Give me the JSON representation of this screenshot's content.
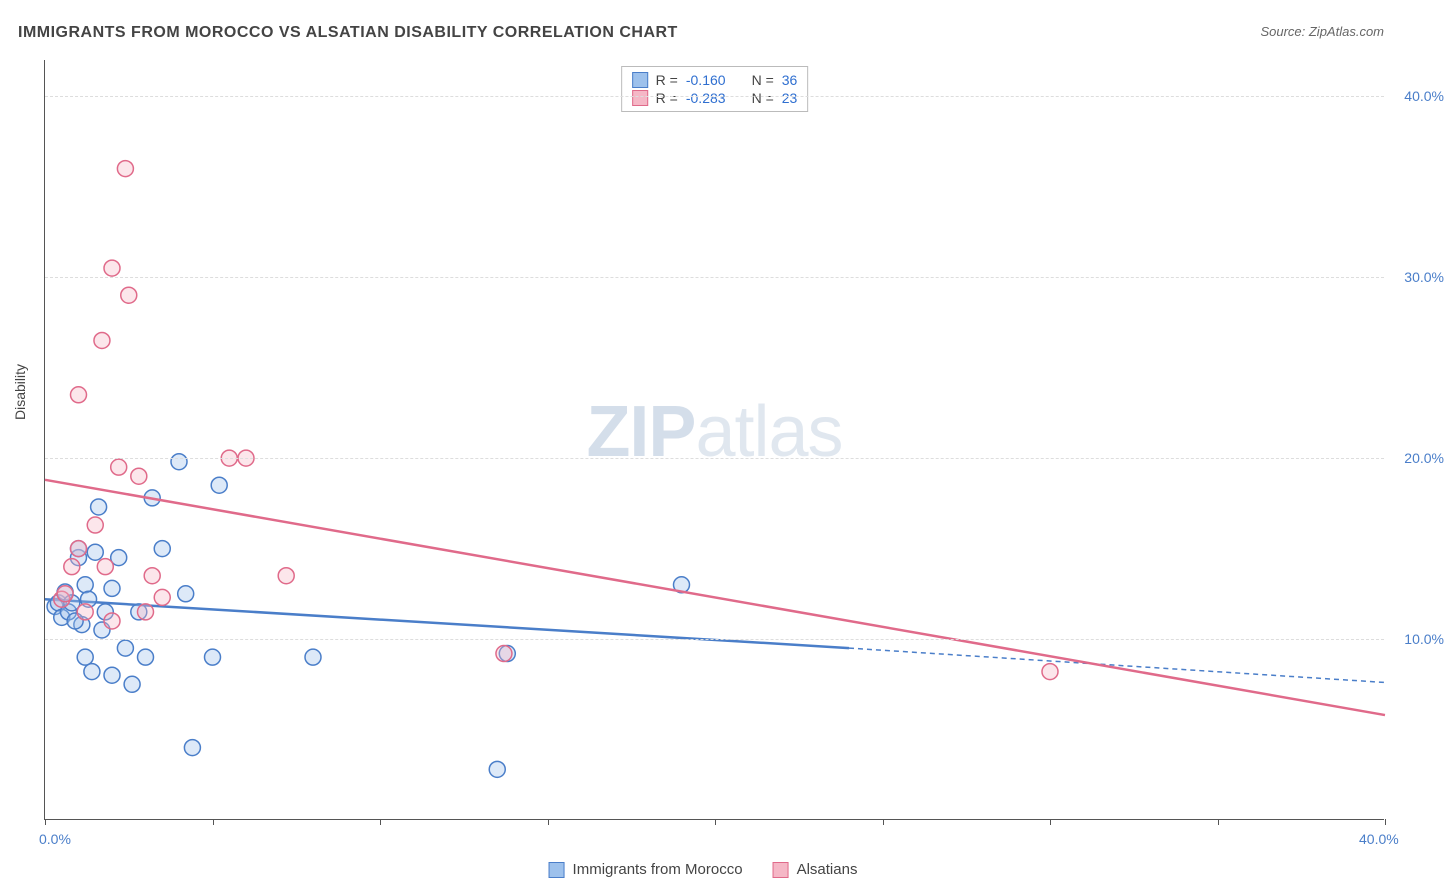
{
  "title": "IMMIGRANTS FROM MOROCCO VS ALSATIAN DISABILITY CORRELATION CHART",
  "source": "Source: ZipAtlas.com",
  "watermark_zip": "ZIP",
  "watermark_atlas": "atlas",
  "y_axis_label": "Disability",
  "chart": {
    "type": "scatter",
    "xlim": [
      0,
      40
    ],
    "ylim": [
      0,
      42
    ],
    "x_ticks": [
      0,
      5,
      10,
      15,
      20,
      25,
      30,
      35,
      40
    ],
    "x_tick_labels": {
      "0": "0.0%",
      "40": "40.0%"
    },
    "y_gridlines": [
      10,
      20,
      30,
      40
    ],
    "y_tick_labels": {
      "10": "10.0%",
      "20": "20.0%",
      "30": "30.0%",
      "40": "40.0%"
    },
    "background_color": "#ffffff",
    "grid_color": "#dddddd",
    "axis_color": "#555555",
    "label_color_axis": "#4a7ec9",
    "marker_radius": 8,
    "marker_stroke_width": 1.5,
    "marker_fill_opacity": 0.35,
    "series": [
      {
        "name": "Immigrants from Morocco",
        "color_fill": "#9dc1ec",
        "color_stroke": "#4a7ec9",
        "R": "-0.160",
        "N": "36",
        "trend": {
          "solid": {
            "x1": 0,
            "y1": 12.2,
            "x2": 24,
            "y2": 9.5
          },
          "dash": {
            "x1": 24,
            "y1": 9.5,
            "x2": 40,
            "y2": 7.6
          }
        },
        "points": [
          [
            0.3,
            11.8
          ],
          [
            0.4,
            12.0
          ],
          [
            0.5,
            11.2
          ],
          [
            0.6,
            12.6
          ],
          [
            0.7,
            11.5
          ],
          [
            0.8,
            12.0
          ],
          [
            1.0,
            14.5
          ],
          [
            1.0,
            15.0
          ],
          [
            1.2,
            13.0
          ],
          [
            1.2,
            9.0
          ],
          [
            1.4,
            8.2
          ],
          [
            1.5,
            14.8
          ],
          [
            1.6,
            17.3
          ],
          [
            1.8,
            11.5
          ],
          [
            2.0,
            12.8
          ],
          [
            2.0,
            8.0
          ],
          [
            2.2,
            14.5
          ],
          [
            2.4,
            9.5
          ],
          [
            2.6,
            7.5
          ],
          [
            2.8,
            11.5
          ],
          [
            3.0,
            9.0
          ],
          [
            3.2,
            17.8
          ],
          [
            3.5,
            15.0
          ],
          [
            4.0,
            19.8
          ],
          [
            4.2,
            12.5
          ],
          [
            4.4,
            4.0
          ],
          [
            5.0,
            9.0
          ],
          [
            5.2,
            18.5
          ],
          [
            8.0,
            9.0
          ],
          [
            13.5,
            2.8
          ],
          [
            13.8,
            9.2
          ],
          [
            19.0,
            13.0
          ],
          [
            1.1,
            10.8
          ],
          [
            0.9,
            11.0
          ],
          [
            1.3,
            12.2
          ],
          [
            1.7,
            10.5
          ]
        ]
      },
      {
        "name": "Alsatians",
        "color_fill": "#f5b7c6",
        "color_stroke": "#e06a8a",
        "R": "-0.283",
        "N": "23",
        "trend": {
          "solid": {
            "x1": 0,
            "y1": 18.8,
            "x2": 40,
            "y2": 5.8
          }
        },
        "points": [
          [
            0.5,
            12.2
          ],
          [
            0.6,
            12.5
          ],
          [
            0.8,
            14.0
          ],
          [
            1.0,
            15.0
          ],
          [
            1.0,
            23.5
          ],
          [
            1.2,
            11.5
          ],
          [
            1.5,
            16.3
          ],
          [
            1.7,
            26.5
          ],
          [
            1.8,
            14.0
          ],
          [
            2.0,
            30.5
          ],
          [
            2.0,
            11.0
          ],
          [
            2.2,
            19.5
          ],
          [
            2.4,
            36.0
          ],
          [
            2.5,
            29.0
          ],
          [
            2.8,
            19.0
          ],
          [
            3.0,
            11.5
          ],
          [
            3.2,
            13.5
          ],
          [
            3.5,
            12.3
          ],
          [
            5.5,
            20.0
          ],
          [
            6.0,
            20.0
          ],
          [
            7.2,
            13.5
          ],
          [
            13.7,
            9.2
          ],
          [
            30.0,
            8.2
          ]
        ]
      }
    ]
  },
  "legend_top_prefix_R": "R =",
  "legend_top_prefix_N": "N ="
}
